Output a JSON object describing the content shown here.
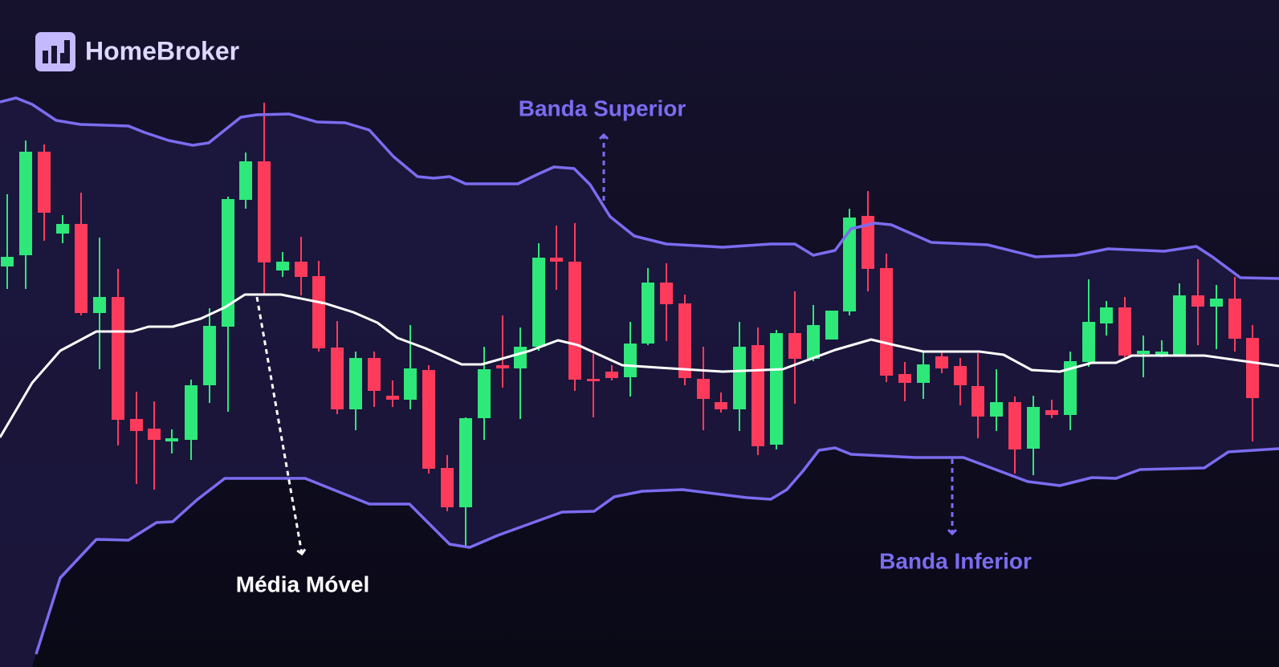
{
  "logo": {
    "text": "HomeBroker"
  },
  "labels": {
    "upper_band": "Banda Superior",
    "moving_average": "Média Móvel",
    "lower_band": "Banda Inferior"
  }
}
